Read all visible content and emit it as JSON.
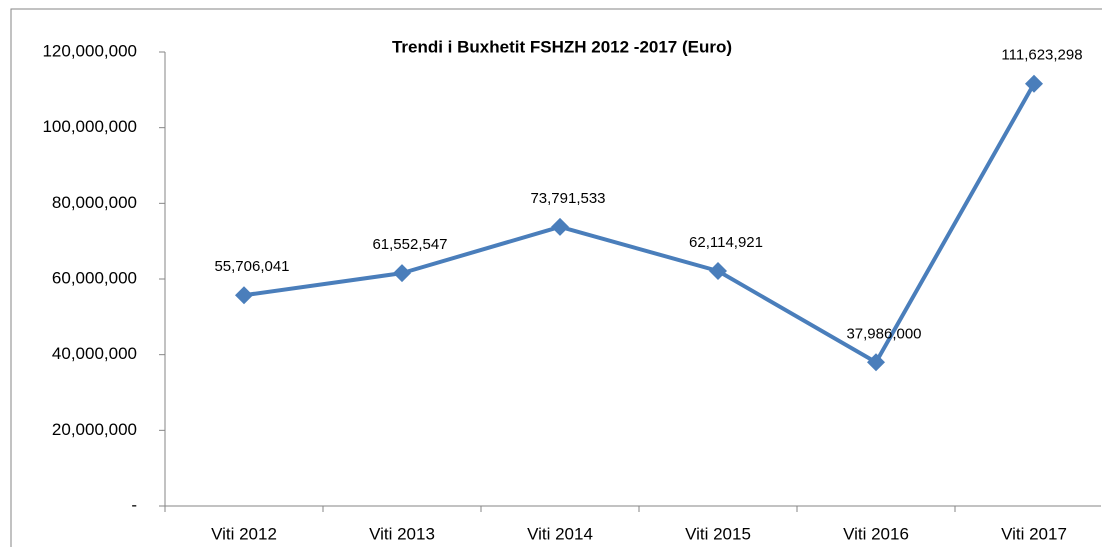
{
  "chart_data": {
    "type": "line",
    "title": "Trendi i Buxhetit FSHZH 2012 -2017 (Euro)",
    "categories": [
      "Viti 2012",
      "Viti 2013",
      "Viti 2014",
      "Viti 2015",
      "Viti 2016",
      "Viti 2017"
    ],
    "values": [
      55706041,
      61552547,
      73791533,
      62114921,
      37986000,
      111623298
    ],
    "value_labels": [
      "55,706,041",
      "61,552,547",
      "73,791,533",
      "62,114,921",
      "37,986,000",
      "111,623,298"
    ],
    "color": "#4a7ebb",
    "ylim": [
      0,
      120000000
    ],
    "yticks": [
      {
        "value": 0,
        "label": "-"
      },
      {
        "value": 20000000,
        "label": "20,000,000"
      },
      {
        "value": 40000000,
        "label": "40,000,000"
      },
      {
        "value": 60000000,
        "label": "60,000,000"
      },
      {
        "value": 80000000,
        "label": "80,000,000"
      },
      {
        "value": 100000000,
        "label": "100,000,000"
      },
      {
        "value": 120000000,
        "label": "120,000,000"
      }
    ],
    "grid": false
  }
}
